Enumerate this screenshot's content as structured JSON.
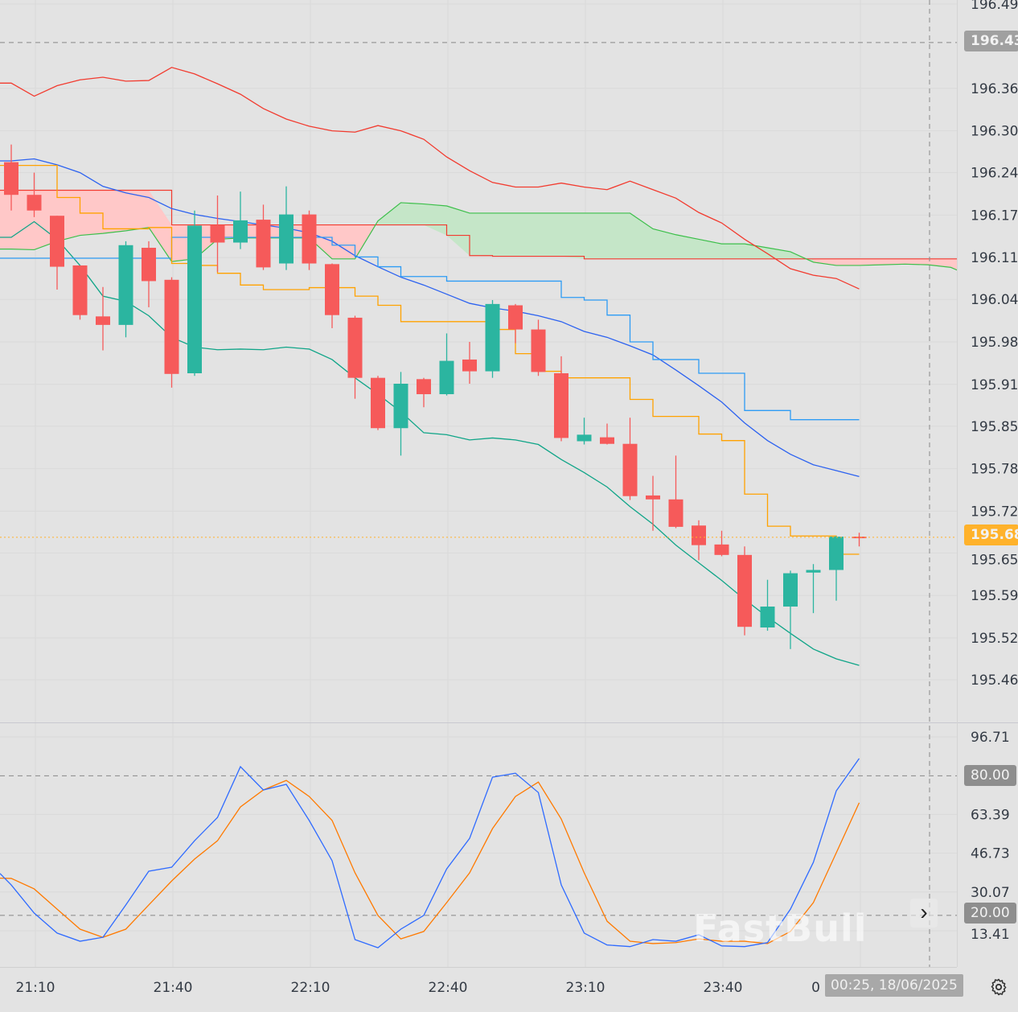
{
  "chart_data": {
    "type": "candlestick",
    "times": [
      "21:05",
      "21:10",
      "21:15",
      "21:20",
      "21:25",
      "21:30",
      "21:35",
      "21:40",
      "21:45",
      "21:50",
      "21:55",
      "22:00",
      "22:05",
      "22:10",
      "22:15",
      "22:20",
      "22:25",
      "22:30",
      "22:35",
      "22:40",
      "22:45",
      "22:50",
      "22:55",
      "23:00",
      "23:05",
      "23:10",
      "23:15",
      "23:20",
      "23:25",
      "23:30",
      "23:35",
      "23:40",
      "23:45",
      "23:50",
      "23:55",
      "00:00",
      "00:05",
      "00:10",
      "00:15",
      "00:20",
      "00:25",
      "00:30",
      "00:35"
    ],
    "ohlc": [
      [
        196.256,
        196.283,
        196.182,
        196.206
      ],
      [
        196.206,
        196.24,
        196.172,
        196.182
      ],
      [
        196.174,
        196.174,
        196.061,
        196.096
      ],
      [
        196.098,
        196.098,
        196.015,
        196.022
      ],
      [
        196.02,
        196.065,
        195.968,
        196.007
      ],
      [
        196.007,
        196.135,
        195.988,
        196.129
      ],
      [
        196.125,
        196.135,
        196.034,
        196.074
      ],
      [
        196.076,
        196.08,
        195.911,
        195.932
      ],
      [
        195.933,
        196.182,
        195.929,
        196.159
      ],
      [
        196.16,
        196.205,
        196.088,
        196.133
      ],
      [
        196.133,
        196.211,
        196.123,
        196.167
      ],
      [
        196.168,
        196.191,
        196.091,
        196.095
      ],
      [
        196.101,
        196.219,
        196.091,
        196.176
      ],
      [
        196.176,
        196.182,
        196.091,
        196.101
      ],
      [
        196.1,
        196.101,
        196.002,
        196.022
      ],
      [
        196.018,
        196.021,
        195.894,
        195.926
      ],
      [
        195.926,
        195.929,
        195.846,
        195.849
      ],
      [
        195.849,
        195.935,
        195.807,
        195.917
      ],
      [
        195.924,
        195.926,
        195.881,
        195.901
      ],
      [
        195.901,
        195.994,
        195.899,
        195.952
      ],
      [
        195.954,
        195.981,
        195.917,
        195.936
      ],
      [
        195.936,
        196.045,
        195.926,
        196.039
      ],
      [
        196.037,
        196.039,
        195.979,
        196.0
      ],
      [
        196.0,
        196.015,
        195.929,
        195.935
      ],
      [
        195.933,
        195.959,
        195.829,
        195.834
      ],
      [
        195.829,
        195.865,
        195.824,
        195.839
      ],
      [
        195.835,
        195.856,
        195.824,
        195.825
      ],
      [
        195.825,
        195.865,
        195.739,
        195.745
      ],
      [
        195.746,
        195.776,
        195.692,
        195.74
      ],
      [
        195.74,
        195.807,
        195.696,
        195.698
      ],
      [
        195.7,
        195.708,
        195.647,
        195.67
      ],
      [
        195.671,
        195.692,
        195.653,
        195.655
      ],
      [
        195.655,
        195.668,
        195.532,
        195.545
      ],
      [
        195.544,
        195.617,
        195.539,
        195.576
      ],
      [
        195.576,
        195.631,
        195.511,
        195.627
      ],
      [
        195.628,
        195.641,
        195.566,
        195.632
      ],
      [
        195.632,
        195.684,
        195.585,
        195.683
      ],
      [
        195.683,
        195.689,
        195.668,
        195.682
      ]
    ],
    "lines": [
      {
        "color": "#f23b2f",
        "values": [
          196.377,
          196.357,
          196.373,
          196.382,
          196.386,
          196.38,
          196.381,
          196.401,
          196.391,
          196.376,
          196.36,
          196.338,
          196.322,
          196.311,
          196.304,
          196.302,
          196.312,
          196.304,
          196.291,
          196.264,
          196.243,
          196.225,
          196.218,
          196.218,
          196.224,
          196.218,
          196.214,
          196.227,
          196.214,
          196.201,
          196.179,
          196.163,
          196.138,
          196.116,
          196.093,
          196.083,
          196.078,
          196.062
        ]
      },
      {
        "color": "#10a588",
        "values": [
          196.141,
          196.165,
          196.138,
          196.098,
          196.051,
          196.043,
          196.021,
          195.988,
          195.973,
          195.969,
          195.97,
          195.969,
          195.973,
          195.97,
          195.954,
          195.926,
          195.901,
          195.874,
          195.842,
          195.839,
          195.831,
          195.834,
          195.831,
          195.824,
          195.801,
          195.781,
          195.759,
          195.729,
          195.702,
          195.67,
          195.643,
          195.616,
          195.587,
          195.56,
          195.535,
          195.511,
          195.496,
          195.486
        ]
      },
      {
        "color": "#2c62f0",
        "values": [
          196.258,
          196.261,
          196.252,
          196.24,
          196.219,
          196.209,
          196.202,
          196.185,
          196.176,
          196.17,
          196.165,
          196.16,
          196.155,
          196.148,
          196.135,
          196.113,
          196.096,
          196.08,
          196.068,
          196.054,
          196.04,
          196.033,
          196.028,
          196.021,
          196.012,
          195.997,
          195.988,
          195.975,
          195.961,
          195.938,
          195.914,
          195.889,
          195.857,
          195.83,
          195.809,
          195.793,
          195.784,
          195.775
        ]
      },
      {
        "color": "#2d9cf5",
        "step": true,
        "values": [
          196.109,
          196.109,
          196.109,
          196.109,
          196.109,
          196.109,
          196.109,
          196.141,
          196.141,
          196.141,
          196.141,
          196.141,
          196.141,
          196.141,
          196.129,
          196.111,
          196.096,
          196.081,
          196.081,
          196.074,
          196.074,
          196.074,
          196.074,
          196.074,
          196.049,
          196.045,
          196.022,
          195.981,
          195.954,
          195.954,
          195.933,
          195.933,
          195.876,
          195.876,
          195.862,
          195.862,
          195.862,
          195.862
        ]
      },
      {
        "color": "#ffa200",
        "step": true,
        "values": [
          196.251,
          196.251,
          196.202,
          196.178,
          196.154,
          196.154,
          196.156,
          196.101,
          196.098,
          196.086,
          196.068,
          196.061,
          196.061,
          196.064,
          196.064,
          196.051,
          196.037,
          196.012,
          196.012,
          196.012,
          196.012,
          196.0,
          195.963,
          195.936,
          195.926,
          195.926,
          195.926,
          195.893,
          195.867,
          195.867,
          195.84,
          195.83,
          195.748,
          195.699,
          195.684,
          195.684,
          195.656,
          195.656
        ]
      }
    ],
    "cloud": {
      "span_red": [
        196.213,
        196.213,
        196.213,
        196.213,
        196.213,
        196.213,
        196.213,
        196.16,
        196.16,
        196.16,
        196.16,
        196.16,
        196.16,
        196.16,
        196.16,
        196.16,
        196.16,
        196.16,
        196.16,
        196.144,
        196.113,
        196.112,
        196.112,
        196.112,
        196.112,
        196.108,
        196.108,
        196.108,
        196.108,
        196.108,
        196.108,
        196.108,
        196.108,
        196.108,
        196.108,
        196.108,
        196.108,
        196.108,
        196.108,
        196.108,
        196.108,
        196.108,
        196.108
      ],
      "span_green": [
        196.123,
        196.122,
        196.135,
        196.144,
        196.147,
        196.151,
        196.156,
        196.104,
        196.108,
        196.138,
        196.14,
        196.14,
        196.14,
        196.14,
        196.108,
        196.108,
        196.166,
        196.194,
        196.192,
        196.189,
        196.178,
        196.178,
        196.178,
        196.178,
        196.178,
        196.178,
        196.178,
        196.178,
        196.154,
        196.145,
        196.138,
        196.131,
        196.131,
        196.125,
        196.119,
        196.103,
        196.098,
        196.098,
        196.099,
        196.1,
        196.099,
        196.095,
        196.08
      ],
      "color_bear": "#ffc8c8",
      "color_bull": "#c5e6c8",
      "line_red": "#f23b2f",
      "line_green": "#3cbf4a"
    },
    "price_axis": [
      "196.498",
      "196.439",
      "196.369",
      "196.304",
      "196.240",
      "196.175",
      "196.110",
      "196.046",
      "195.981",
      "195.916",
      "195.852",
      "195.787",
      "195.722",
      "195.658",
      "195.593",
      "195.528",
      "195.464"
    ],
    "price_range": [
      195.464,
      196.498
    ],
    "last_price": "195.682",
    "crosshair_price": "196.439",
    "crosshair_time": "00:25, 18/06/2025",
    "time_axis": [
      "21:10",
      "21:40",
      "22:10",
      "22:40",
      "23:10",
      "23:40",
      "0"
    ],
    "stoch": {
      "axis": [
        "96.71",
        "80.00",
        "63.39",
        "46.73",
        "30.07",
        "20.00",
        "13.41"
      ],
      "range": [
        13.41,
        96.71
      ],
      "levels": [
        80,
        20
      ],
      "k": {
        "color": "#2f6bff",
        "values": [
          33.1,
          21.0,
          12.4,
          8.9,
          10.6,
          24.5,
          39.0,
          40.7,
          52.1,
          62.1,
          83.9,
          73.9,
          76.3,
          60.8,
          43.5,
          9.6,
          6.1,
          14.1,
          20.0,
          40.0,
          53.1,
          79.4,
          81.1,
          72.8,
          33.1,
          12.4,
          7.3,
          6.6,
          9.6,
          8.9,
          11.7,
          6.9,
          6.6,
          8.3,
          22.7,
          42.8,
          73.5,
          87.4
        ]
      },
      "d": {
        "color": "#ff7a00",
        "values": [
          35.9,
          31.4,
          22.7,
          14.1,
          10.6,
          14.1,
          24.5,
          34.8,
          44.2,
          52.1,
          66.6,
          73.9,
          78.0,
          71.1,
          60.8,
          38.3,
          20.0,
          9.9,
          13.1,
          25.5,
          38.3,
          57.3,
          71.1,
          77.3,
          61.4,
          38.3,
          17.5,
          8.9,
          7.9,
          8.3,
          9.9,
          8.9,
          8.9,
          7.9,
          13.1,
          25.5,
          46.9,
          68.4
        ]
      }
    },
    "colors": {
      "up": "#2bb5a0",
      "down": "#f65a5a",
      "background": "#e3e3e3",
      "last_price": "#ffb22b",
      "crosshair_label": "#a0a0a0"
    },
    "grid": true
  },
  "watermark": "FastBull",
  "icons": {
    "scroll": "chevron-right-icon",
    "settings": "gear-icon"
  },
  "scroll_button": "›"
}
